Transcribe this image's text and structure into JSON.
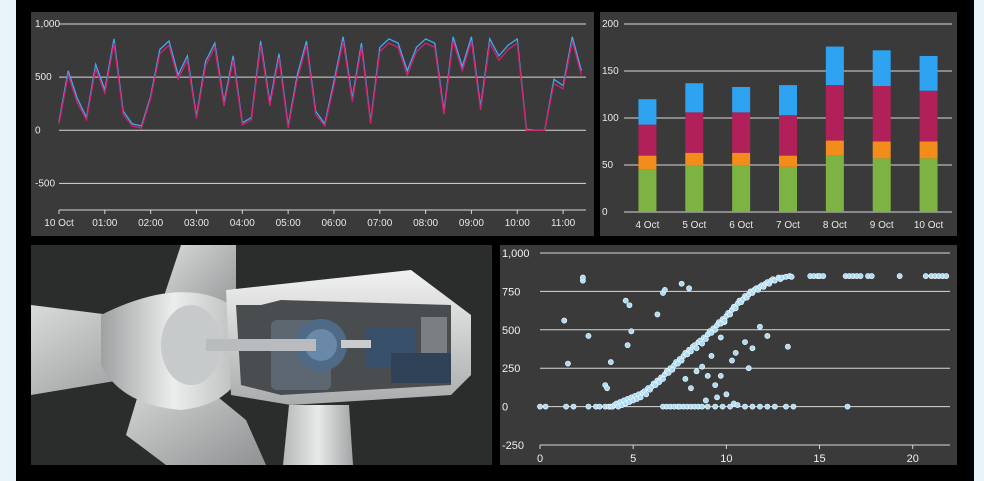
{
  "colors": {
    "background": "#e9f4fa",
    "panel": "#3a3a3a",
    "series_blue": "#3fa9f5",
    "series_magenta": "#d6206e",
    "bar_green": "#7cb342",
    "bar_orange": "#f28c1b",
    "bar_magenta": "#b22059",
    "bar_blue": "#2ea3f2",
    "scatter_point": "#a8dcf7"
  },
  "chart_data": [
    {
      "type": "line",
      "ylim": [
        -750,
        1000
      ],
      "yticks": [
        {
          "value": 1000,
          "label": "1,000"
        },
        {
          "value": 500,
          "label": "500"
        },
        {
          "value": 0,
          "label": "0"
        },
        {
          "value": -500,
          "label": "-500"
        }
      ],
      "xlim": [
        0,
        11.5
      ],
      "xticks": [
        {
          "value": 0,
          "label": "10 Oct"
        },
        {
          "value": 1,
          "label": "01:00"
        },
        {
          "value": 2,
          "label": "02:00"
        },
        {
          "value": 3,
          "label": "03:00"
        },
        {
          "value": 4,
          "label": "04:00"
        },
        {
          "value": 5,
          "label": "05:00"
        },
        {
          "value": 6,
          "label": "06:00"
        },
        {
          "value": 7,
          "label": "07:00"
        },
        {
          "value": 8,
          "label": "08:00"
        },
        {
          "value": 9,
          "label": "09:00"
        },
        {
          "value": 10,
          "label": "10:00"
        },
        {
          "value": 11,
          "label": "11:00"
        }
      ],
      "series": [
        {
          "color": "#3fa9f5",
          "x": [
            0,
            0.2,
            0.4,
            0.6,
            0.8,
            1.0,
            1.2,
            1.4,
            1.6,
            1.8,
            2.0,
            2.2,
            2.4,
            2.6,
            2.8,
            3.0,
            3.2,
            3.4,
            3.6,
            3.8,
            4.0,
            4.2,
            4.4,
            4.6,
            4.8,
            5.0,
            5.2,
            5.4,
            5.6,
            5.8,
            6.0,
            6.2,
            6.4,
            6.6,
            6.8,
            7.0,
            7.2,
            7.4,
            7.6,
            7.8,
            8.0,
            8.2,
            8.4,
            8.6,
            8.8,
            9.0,
            9.2,
            9.4,
            9.6,
            9.8,
            10.0,
            10.2,
            10.4,
            10.6,
            10.8,
            11.0,
            11.2,
            11.4
          ],
          "y": [
            80,
            560,
            300,
            120,
            620,
            380,
            860,
            180,
            60,
            40,
            320,
            760,
            840,
            520,
            700,
            130,
            650,
            820,
            260,
            700,
            70,
            120,
            840,
            260,
            720,
            40,
            520,
            840,
            180,
            60,
            460,
            880,
            300,
            820,
            80,
            780,
            860,
            820,
            560,
            780,
            860,
            820,
            180,
            880,
            600,
            880,
            220,
            860,
            700,
            800,
            860,
            10,
            0,
            0,
            480,
            420,
            880,
            560
          ]
        },
        {
          "color": "#d6206e",
          "x": [
            0,
            0.2,
            0.4,
            0.6,
            0.8,
            1.0,
            1.2,
            1.4,
            1.6,
            1.8,
            2.0,
            2.2,
            2.4,
            2.6,
            2.8,
            3.0,
            3.2,
            3.4,
            3.6,
            3.8,
            4.0,
            4.2,
            4.4,
            4.6,
            4.8,
            5.0,
            5.2,
            5.4,
            5.6,
            5.8,
            6.0,
            6.2,
            6.4,
            6.6,
            6.8,
            7.0,
            7.2,
            7.4,
            7.6,
            7.8,
            8.0,
            8.2,
            8.4,
            8.6,
            8.8,
            9.0,
            9.2,
            9.4,
            9.6,
            9.8,
            10.0,
            10.2,
            10.4,
            10.6,
            10.8,
            11.0,
            11.2,
            11.4
          ],
          "y": [
            60,
            520,
            260,
            100,
            580,
            350,
            820,
            150,
            40,
            20,
            300,
            720,
            800,
            480,
            660,
            110,
            610,
            780,
            230,
            660,
            50,
            100,
            800,
            230,
            680,
            20,
            480,
            800,
            150,
            40,
            420,
            840,
            270,
            780,
            60,
            740,
            820,
            780,
            520,
            740,
            820,
            780,
            150,
            840,
            560,
            840,
            190,
            820,
            660,
            760,
            820,
            0,
            0,
            0,
            440,
            390,
            840,
            520
          ]
        }
      ]
    },
    {
      "type": "bar",
      "stacked": true,
      "categories": [
        "4 Oct",
        "5 Oct",
        "6 Oct",
        "7 Oct",
        "8 Oct",
        "9 Oct",
        "10 Oct"
      ],
      "ylim": [
        0,
        200
      ],
      "yticks": [
        {
          "value": 200,
          "label": "200"
        },
        {
          "value": 150,
          "label": "150"
        },
        {
          "value": 100,
          "label": "100"
        },
        {
          "value": 50,
          "label": "50"
        },
        {
          "value": 0,
          "label": "0"
        }
      ],
      "series": [
        {
          "color": "#7cb342",
          "values": [
            45,
            50,
            50,
            48,
            60,
            57,
            57
          ]
        },
        {
          "color": "#f28c1b",
          "values": [
            15,
            13,
            13,
            12,
            16,
            18,
            18
          ]
        },
        {
          "color": "#b22059",
          "values": [
            33,
            43,
            43,
            43,
            59,
            59,
            54
          ]
        },
        {
          "color": "#2ea3f2",
          "values": [
            27,
            31,
            27,
            32,
            41,
            38,
            37
          ]
        }
      ]
    },
    {
      "type": "scatter",
      "xlim": [
        0,
        22
      ],
      "ylim": [
        -250,
        1000
      ],
      "xticks": [
        {
          "value": 0,
          "label": "0"
        },
        {
          "value": 5,
          "label": "5"
        },
        {
          "value": 10,
          "label": "10"
        },
        {
          "value": 15,
          "label": "15"
        },
        {
          "value": 20,
          "label": "20"
        }
      ],
      "yticks": [
        {
          "value": 1000,
          "label": "1,000"
        },
        {
          "value": 750,
          "label": "750"
        },
        {
          "value": 500,
          "label": "500"
        },
        {
          "value": 250,
          "label": "250"
        },
        {
          "value": 0,
          "label": "0"
        },
        {
          "value": -250,
          "label": "-250"
        }
      ],
      "points": [
        [
          0,
          0
        ],
        [
          0.3,
          0
        ],
        [
          1.4,
          0
        ],
        [
          1.8,
          0
        ],
        [
          2.6,
          0
        ],
        [
          3.0,
          0
        ],
        [
          3.2,
          0
        ],
        [
          3.5,
          0
        ],
        [
          3.7,
          0
        ],
        [
          3.8,
          0
        ],
        [
          1.5,
          280
        ],
        [
          1.3,
          560
        ],
        [
          2.3,
          820
        ],
        [
          2.3,
          840
        ],
        [
          2.6,
          460
        ],
        [
          3.5,
          140
        ],
        [
          3.6,
          120
        ],
        [
          3.8,
          290
        ],
        [
          4.6,
          690
        ],
        [
          4.8,
          660
        ],
        [
          4.7,
          400
        ],
        [
          4.9,
          490
        ],
        [
          6.3,
          600
        ],
        [
          6.6,
          740
        ],
        [
          6.7,
          760
        ],
        [
          7.6,
          800
        ],
        [
          8.0,
          770
        ],
        [
          9.9,
          550
        ],
        [
          9.7,
          450
        ],
        [
          10.3,
          300
        ],
        [
          11.2,
          250
        ],
        [
          11.8,
          520
        ],
        [
          12.2,
          460
        ],
        [
          13.3,
          390
        ],
        [
          3.9,
          0
        ],
        [
          4.0,
          10
        ],
        [
          4.1,
          20
        ],
        [
          4.2,
          0
        ],
        [
          4.3,
          30
        ],
        [
          4.4,
          10
        ],
        [
          4.5,
          40
        ],
        [
          4.6,
          20
        ],
        [
          4.7,
          50
        ],
        [
          4.8,
          30
        ],
        [
          4.9,
          60
        ],
        [
          5.0,
          40
        ],
        [
          5.1,
          70
        ],
        [
          5.2,
          50
        ],
        [
          5.3,
          80
        ],
        [
          5.4,
          60
        ],
        [
          5.5,
          90
        ],
        [
          5.6,
          100
        ],
        [
          5.7,
          80
        ],
        [
          5.8,
          120
        ],
        [
          5.9,
          110
        ],
        [
          6.0,
          130
        ],
        [
          6.1,
          150
        ],
        [
          6.2,
          140
        ],
        [
          6.3,
          170
        ],
        [
          6.4,
          160
        ],
        [
          6.5,
          190
        ],
        [
          6.6,
          180
        ],
        [
          6.7,
          210
        ],
        [
          6.8,
          230
        ],
        [
          6.9,
          220
        ],
        [
          7.0,
          250
        ],
        [
          7.1,
          240
        ],
        [
          7.2,
          270
        ],
        [
          7.3,
          290
        ],
        [
          7.4,
          280
        ],
        [
          7.5,
          310
        ],
        [
          7.6,
          300
        ],
        [
          7.7,
          330
        ],
        [
          7.8,
          350
        ],
        [
          7.9,
          340
        ],
        [
          8.0,
          370
        ],
        [
          8.1,
          360
        ],
        [
          8.2,
          390
        ],
        [
          8.3,
          400
        ],
        [
          8.4,
          380
        ],
        [
          8.5,
          420
        ],
        [
          8.6,
          430
        ],
        [
          8.7,
          410
        ],
        [
          8.8,
          450
        ],
        [
          8.9,
          440
        ],
        [
          9.0,
          470
        ],
        [
          9.1,
          490
        ],
        [
          9.2,
          480
        ],
        [
          9.3,
          510
        ],
        [
          9.4,
          500
        ],
        [
          9.5,
          530
        ],
        [
          9.6,
          550
        ],
        [
          9.7,
          540
        ],
        [
          9.8,
          570
        ],
        [
          9.9,
          560
        ],
        [
          10.0,
          590
        ],
        [
          10.1,
          610
        ],
        [
          10.2,
          600
        ],
        [
          10.3,
          630
        ],
        [
          10.4,
          650
        ],
        [
          10.5,
          640
        ],
        [
          10.6,
          670
        ],
        [
          10.7,
          690
        ],
        [
          10.8,
          680
        ],
        [
          10.9,
          700
        ],
        [
          11.0,
          720
        ],
        [
          11.1,
          710
        ],
        [
          11.2,
          730
        ],
        [
          11.3,
          750
        ],
        [
          11.4,
          740
        ],
        [
          11.5,
          760
        ],
        [
          11.6,
          770
        ],
        [
          11.7,
          760
        ],
        [
          11.8,
          780
        ],
        [
          11.9,
          790
        ],
        [
          12.0,
          780
        ],
        [
          12.1,
          800
        ],
        [
          12.2,
          810
        ],
        [
          12.3,
          800
        ],
        [
          12.4,
          820
        ],
        [
          12.5,
          830
        ],
        [
          12.6,
          820
        ],
        [
          12.8,
          840
        ],
        [
          12.9,
          830
        ],
        [
          13.0,
          840
        ],
        [
          13.2,
          845
        ],
        [
          13.4,
          850
        ],
        [
          13.5,
          845
        ],
        [
          8.7,
          260
        ],
        [
          9.0,
          200
        ],
        [
          9.4,
          140
        ],
        [
          9.7,
          200
        ],
        [
          8.1,
          120
        ],
        [
          7.8,
          180
        ],
        [
          8.4,
          230
        ],
        [
          9.2,
          330
        ],
        [
          10.5,
          350
        ],
        [
          11.0,
          420
        ],
        [
          11.4,
          380
        ],
        [
          10.0,
          80
        ],
        [
          9.5,
          60
        ],
        [
          8.9,
          40
        ],
        [
          6.6,
          0
        ],
        [
          6.8,
          0
        ],
        [
          7.0,
          0
        ],
        [
          7.2,
          0
        ],
        [
          7.4,
          0
        ],
        [
          7.5,
          0
        ],
        [
          7.7,
          0
        ],
        [
          7.9,
          0
        ],
        [
          8.1,
          0
        ],
        [
          8.3,
          0
        ],
        [
          8.5,
          0
        ],
        [
          8.7,
          0
        ],
        [
          9.0,
          0
        ],
        [
          9.4,
          0
        ],
        [
          9.8,
          0
        ],
        [
          10.2,
          0
        ],
        [
          10.4,
          20
        ],
        [
          10.6,
          10
        ],
        [
          11.0,
          0
        ],
        [
          11.4,
          0
        ],
        [
          11.8,
          0
        ],
        [
          12.2,
          0
        ],
        [
          12.6,
          0
        ],
        [
          13.2,
          0
        ],
        [
          13.6,
          0
        ],
        [
          16.5,
          0
        ],
        [
          14.5,
          850
        ],
        [
          14.7,
          850
        ],
        [
          14.9,
          850
        ],
        [
          15.0,
          850
        ],
        [
          15.2,
          850
        ],
        [
          16.4,
          850
        ],
        [
          16.6,
          850
        ],
        [
          16.8,
          850
        ],
        [
          17.0,
          850
        ],
        [
          17.2,
          850
        ],
        [
          17.6,
          850
        ],
        [
          17.8,
          850
        ],
        [
          19.3,
          850
        ],
        [
          20.7,
          850
        ],
        [
          21.0,
          850
        ],
        [
          21.2,
          850
        ],
        [
          21.4,
          850
        ],
        [
          21.6,
          850
        ],
        [
          21.8,
          850
        ]
      ]
    }
  ],
  "image": {
    "icon": "wind-turbine-nacelle-cutaway"
  }
}
